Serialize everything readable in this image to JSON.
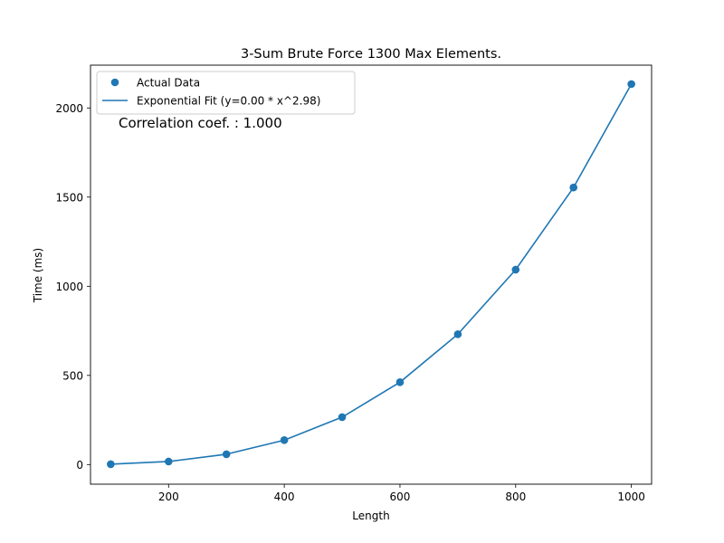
{
  "chart_data": {
    "type": "scatter",
    "title": "3-Sum Brute Force 1300 Max Elements.",
    "xlabel": "Length",
    "ylabel": "Time (ms)",
    "xlim": [
      65,
      1035
    ],
    "ylim": [
      -110,
      2240
    ],
    "x_ticks": [
      200,
      400,
      600,
      800,
      1000
    ],
    "y_ticks": [
      0,
      500,
      1000,
      1500,
      2000
    ],
    "grid": false,
    "legend_position": "top-left",
    "annotation": "Correlation coef. : 1.000",
    "series": [
      {
        "name": "Actual Data",
        "kind": "scatter",
        "color": "#1f77b4",
        "x": [
          100,
          200,
          300,
          400,
          500,
          600,
          700,
          800,
          900,
          1000
        ],
        "y": [
          2,
          17,
          58,
          137,
          266,
          462,
          731,
          1093,
          1554,
          2134
        ]
      },
      {
        "name": "Exponential Fit (y=0.00 * x^2.98)",
        "kind": "line",
        "color": "#1f77b4",
        "x": [
          100,
          200,
          300,
          400,
          500,
          600,
          700,
          800,
          900,
          1000
        ],
        "y": [
          2,
          17,
          58,
          137,
          266,
          462,
          731,
          1093,
          1554,
          2134
        ]
      }
    ]
  }
}
